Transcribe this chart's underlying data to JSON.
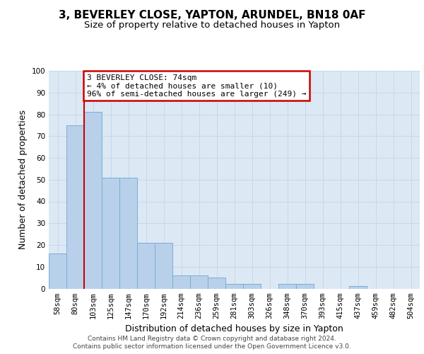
{
  "title1": "3, BEVERLEY CLOSE, YAPTON, ARUNDEL, BN18 0AF",
  "title2": "Size of property relative to detached houses in Yapton",
  "xlabel": "Distribution of detached houses by size in Yapton",
  "ylabel": "Number of detached properties",
  "categories": [
    "58sqm",
    "80sqm",
    "103sqm",
    "125sqm",
    "147sqm",
    "170sqm",
    "192sqm",
    "214sqm",
    "236sqm",
    "259sqm",
    "281sqm",
    "303sqm",
    "326sqm",
    "348sqm",
    "370sqm",
    "393sqm",
    "415sqm",
    "437sqm",
    "459sqm",
    "482sqm",
    "504sqm"
  ],
  "values": [
    16,
    75,
    81,
    51,
    51,
    21,
    21,
    6,
    6,
    5,
    2,
    2,
    0,
    2,
    2,
    0,
    0,
    1,
    0,
    0,
    0
  ],
  "bar_color": "#b8d0ea",
  "bar_edge_color": "#7aaed6",
  "annotation_text": "3 BEVERLEY CLOSE: 74sqm\n← 4% of detached houses are smaller (10)\n96% of semi-detached houses are larger (249) →",
  "annotation_box_color": "#ffffff",
  "annotation_box_edge": "#cc0000",
  "ylim": [
    0,
    100
  ],
  "yticks": [
    0,
    10,
    20,
    30,
    40,
    50,
    60,
    70,
    80,
    90,
    100
  ],
  "grid_color": "#c8d8e8",
  "bg_color": "#dce8f4",
  "footer": "Contains HM Land Registry data © Crown copyright and database right 2024.\nContains public sector information licensed under the Open Government Licence v3.0.",
  "red_line_color": "#cc0000",
  "title_fontsize": 11,
  "subtitle_fontsize": 9.5,
  "tick_fontsize": 7.5,
  "ylabel_fontsize": 9,
  "xlabel_fontsize": 9,
  "footer_fontsize": 6.5
}
